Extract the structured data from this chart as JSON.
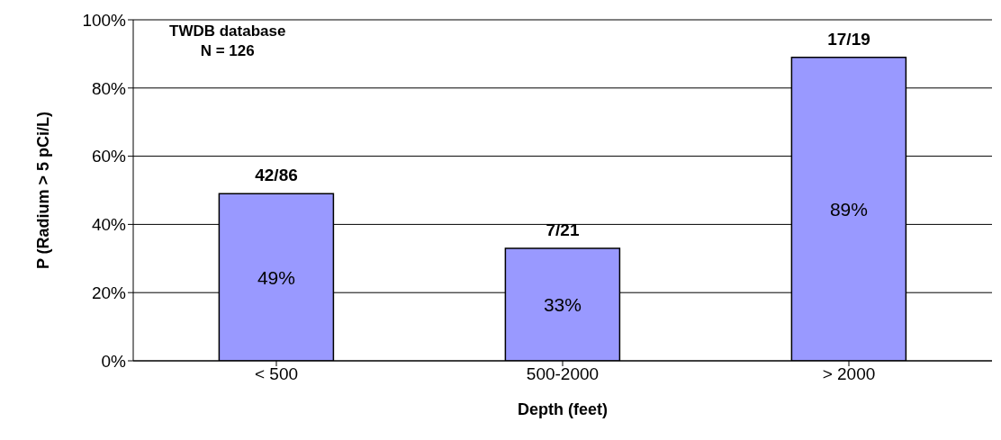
{
  "chart_data": {
    "type": "bar",
    "xlabel": "Depth (feet)",
    "ylabel": "P (Radium > 5 pCi/L)",
    "categories": [
      "< 500",
      "500-2000",
      "> 2000"
    ],
    "values": [
      49,
      33,
      89
    ],
    "color": "#9999ff",
    "value_labels": [
      "49%",
      "33%",
      "89%"
    ],
    "ylim": [
      0,
      100
    ],
    "yticks": [
      {
        "value": 0,
        "label": "0%"
      },
      {
        "value": 20,
        "label": "20%"
      },
      {
        "value": 40,
        "label": "40%"
      },
      {
        "value": 60,
        "label": "60%"
      },
      {
        "value": 80,
        "label": "80%"
      },
      {
        "value": 100,
        "label": "100%"
      }
    ],
    "grid": "y",
    "legend": false,
    "annotations": [
      "TWDB database",
      "N = 126",
      {
        "text": "42/86",
        "x": "< 500",
        "y": 49
      },
      {
        "text": "7/21",
        "x": "500-2000",
        "y": 33
      },
      {
        "text": "17/19",
        "x": "> 2000",
        "y": 89
      }
    ]
  }
}
